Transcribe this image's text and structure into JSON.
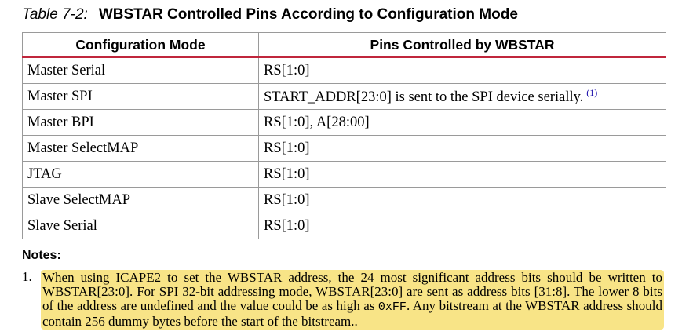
{
  "caption": {
    "label": "Table 7-2:",
    "title": "WBSTAR Controlled Pins According to Configuration Mode"
  },
  "table": {
    "headers": [
      "Configuration Mode",
      "Pins Controlled by WBSTAR"
    ],
    "rows": [
      {
        "mode": "Master Serial",
        "pins": "RS[1:0]"
      },
      {
        "mode": "Master SPI",
        "pins": "START_ADDR[23:0] is sent to the SPI device serially.",
        "footnote": "(1)"
      },
      {
        "mode": "Master BPI",
        "pins": "RS[1:0], A[28:00]"
      },
      {
        "mode": "Master SelectMAP",
        "pins": "RS[1:0]"
      },
      {
        "mode": "JTAG",
        "pins": "RS[1:0]"
      },
      {
        "mode": "Slave SelectMAP",
        "pins": "RS[1:0]"
      },
      {
        "mode": "Slave Serial",
        "pins": "RS[1:0]"
      }
    ]
  },
  "notes": {
    "title": "Notes:",
    "items": [
      {
        "number": "1.",
        "text_before_code": "When using ICAPE2 to set the WBSTAR address, the 24 most significant address bits should be written to WBSTAR[23:0]. For SPI 32-bit addressing mode, WBSTAR[23:0] are sent as address bits [31:8]. The lower 8 bits of the address are undefined and the value could be as high as ",
        "code": "0xFF",
        "text_after_code": ". Any bitstream at the WBSTAR address should contain 256 dummy bytes before the start of the bitstream.."
      }
    ]
  },
  "colors": {
    "header_rule": "#c0263c",
    "highlight": "#f8e487",
    "footnote_link": "#1a0dab"
  }
}
